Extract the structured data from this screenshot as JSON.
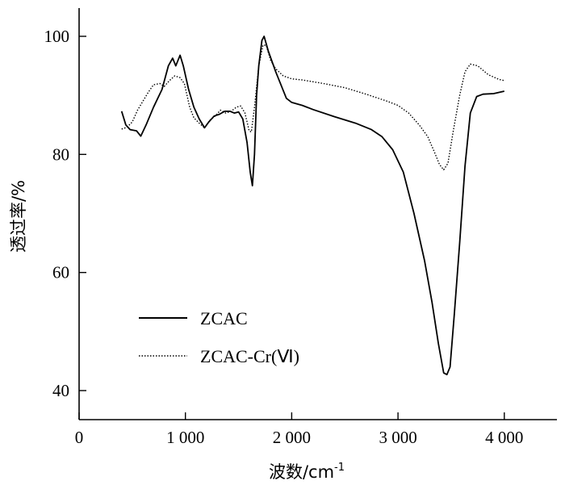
{
  "chart_data": {
    "type": "line",
    "title": "",
    "xlabel_main": "波数/cm",
    "xlabel_sup": "-1",
    "ylabel": "透过率/%",
    "xlim": [
      0,
      4500
    ],
    "ylim": [
      35,
      105
    ],
    "x_ticks": [
      0,
      1000,
      2000,
      3000,
      4000
    ],
    "x_tick_labels": [
      "0",
      "1 000",
      "2 000",
      "3 000",
      "4 000"
    ],
    "y_ticks": [
      40,
      60,
      80,
      100
    ],
    "y_tick_labels": [
      "40",
      "60",
      "80",
      "100"
    ],
    "grid": false,
    "legend_position": "bottom-left",
    "series": [
      {
        "name": "ZCAC",
        "style": "solid",
        "color": "#000000",
        "points": [
          [
            400,
            87.3
          ],
          [
            440,
            85.0
          ],
          [
            480,
            84.2
          ],
          [
            540,
            84.0
          ],
          [
            580,
            83.1
          ],
          [
            630,
            85.0
          ],
          [
            700,
            88.0
          ],
          [
            780,
            91.0
          ],
          [
            840,
            95.0
          ],
          [
            880,
            96.3
          ],
          [
            910,
            95.0
          ],
          [
            950,
            96.8
          ],
          [
            980,
            95.0
          ],
          [
            1030,
            91.0
          ],
          [
            1080,
            88.0
          ],
          [
            1130,
            86.0
          ],
          [
            1180,
            84.5
          ],
          [
            1220,
            85.5
          ],
          [
            1270,
            86.5
          ],
          [
            1320,
            86.8
          ],
          [
            1370,
            87.3
          ],
          [
            1420,
            87.3
          ],
          [
            1460,
            87.0
          ],
          [
            1500,
            87.2
          ],
          [
            1540,
            86.0
          ],
          [
            1580,
            82.0
          ],
          [
            1610,
            77.0
          ],
          [
            1630,
            74.7
          ],
          [
            1650,
            80.0
          ],
          [
            1670,
            90.0
          ],
          [
            1690,
            95.0
          ],
          [
            1720,
            99.3
          ],
          [
            1740,
            100.0
          ],
          [
            1780,
            97.5
          ],
          [
            1850,
            94.0
          ],
          [
            1950,
            89.5
          ],
          [
            2000,
            88.8
          ],
          [
            2100,
            88.3
          ],
          [
            2200,
            87.6
          ],
          [
            2400,
            86.4
          ],
          [
            2600,
            85.3
          ],
          [
            2750,
            84.2
          ],
          [
            2850,
            83.0
          ],
          [
            2950,
            80.8
          ],
          [
            3050,
            77.0
          ],
          [
            3150,
            70.0
          ],
          [
            3250,
            62.0
          ],
          [
            3320,
            55.0
          ],
          [
            3380,
            48.0
          ],
          [
            3430,
            43.0
          ],
          [
            3460,
            42.7
          ],
          [
            3490,
            44.0
          ],
          [
            3530,
            53.0
          ],
          [
            3580,
            65.0
          ],
          [
            3630,
            78.0
          ],
          [
            3680,
            87.0
          ],
          [
            3740,
            89.8
          ],
          [
            3800,
            90.2
          ],
          [
            3900,
            90.3
          ],
          [
            4000,
            90.7
          ]
        ]
      },
      {
        "name": "ZCAC-Cr(Ⅵ)",
        "style": "dotted",
        "color": "#000000",
        "points": [
          [
            400,
            84.3
          ],
          [
            450,
            84.6
          ],
          [
            500,
            85.5
          ],
          [
            550,
            87.5
          ],
          [
            600,
            89.0
          ],
          [
            650,
            90.5
          ],
          [
            700,
            91.8
          ],
          [
            760,
            92.0
          ],
          [
            800,
            91.5
          ],
          [
            850,
            92.5
          ],
          [
            900,
            93.3
          ],
          [
            950,
            93.0
          ],
          [
            990,
            92.0
          ],
          [
            1040,
            88.0
          ],
          [
            1080,
            86.2
          ],
          [
            1130,
            85.3
          ],
          [
            1180,
            84.5
          ],
          [
            1230,
            85.8
          ],
          [
            1280,
            86.5
          ],
          [
            1330,
            87.5
          ],
          [
            1380,
            87.0
          ],
          [
            1430,
            87.3
          ],
          [
            1480,
            88.0
          ],
          [
            1520,
            88.2
          ],
          [
            1560,
            87.0
          ],
          [
            1600,
            84.0
          ],
          [
            1620,
            83.8
          ],
          [
            1650,
            88.0
          ],
          [
            1690,
            95.0
          ],
          [
            1730,
            98.5
          ],
          [
            1760,
            98.5
          ],
          [
            1800,
            96.0
          ],
          [
            1850,
            94.5
          ],
          [
            1920,
            93.3
          ],
          [
            2000,
            92.8
          ],
          [
            2100,
            92.6
          ],
          [
            2200,
            92.3
          ],
          [
            2300,
            92.0
          ],
          [
            2500,
            91.3
          ],
          [
            2700,
            90.2
          ],
          [
            2900,
            89.0
          ],
          [
            3000,
            88.3
          ],
          [
            3100,
            87.0
          ],
          [
            3200,
            85.0
          ],
          [
            3280,
            83.0
          ],
          [
            3340,
            80.5
          ],
          [
            3390,
            78.3
          ],
          [
            3430,
            77.4
          ],
          [
            3470,
            78.5
          ],
          [
            3520,
            84.0
          ],
          [
            3580,
            90.0
          ],
          [
            3630,
            94.0
          ],
          [
            3680,
            95.3
          ],
          [
            3750,
            95.0
          ],
          [
            3850,
            93.5
          ],
          [
            3950,
            92.7
          ],
          [
            4000,
            92.5
          ]
        ]
      }
    ]
  }
}
